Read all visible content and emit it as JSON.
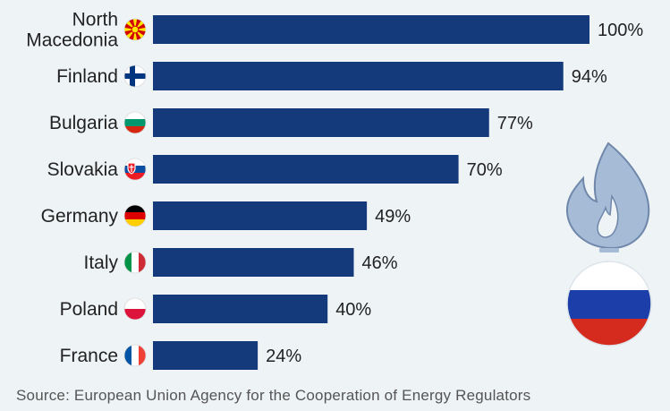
{
  "chart_data": {
    "type": "bar",
    "orientation": "horizontal",
    "categories": [
      "North Macedonia",
      "Finland",
      "Bulgaria",
      "Slovakia",
      "Germany",
      "Italy",
      "Poland",
      "France"
    ],
    "category_label_lines": [
      [
        "North",
        "Macedonia"
      ],
      [
        "Finland"
      ],
      [
        "Bulgaria"
      ],
      [
        "Slovakia"
      ],
      [
        "Germany"
      ],
      [
        "Italy"
      ],
      [
        "Poland"
      ],
      [
        "France"
      ]
    ],
    "flag_icons": [
      "north-macedonia-flag-icon",
      "finland-flag-icon",
      "bulgaria-flag-icon",
      "slovakia-flag-icon",
      "germany-flag-icon",
      "italy-flag-icon",
      "poland-flag-icon",
      "france-flag-icon"
    ],
    "values": [
      100,
      94,
      77,
      70,
      49,
      46,
      40,
      24
    ],
    "value_labels": [
      "100%",
      "94%",
      "77%",
      "70%",
      "49%",
      "46%",
      "40%",
      "24%"
    ],
    "xlim": [
      0,
      100
    ],
    "unit": "%",
    "grid": false,
    "bar_color": "#143a7b"
  },
  "decoration": {
    "flame_icon": "gas-flame-icon",
    "badge_icon": "russia-flag-icon",
    "flame_color": "#a6bbd6",
    "flame_stroke": "#6f87aa",
    "russia_colors": [
      "#ffffff",
      "#1c3ea8",
      "#d52b1e"
    ]
  },
  "source": "Source: European Union Agency for the Cooperation of Energy Regulators"
}
